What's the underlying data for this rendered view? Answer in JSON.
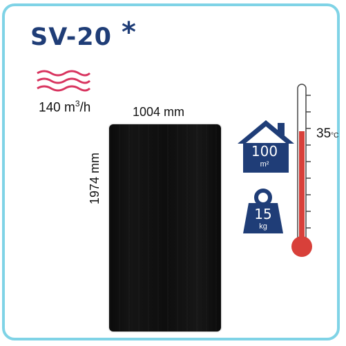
{
  "title": "SV-20",
  "title_mark": "*",
  "flow": {
    "value": "140 m",
    "exp": "3",
    "unit": "/h"
  },
  "dimensions": {
    "width": "1004 mm",
    "height": "1974 mm"
  },
  "area": {
    "value": "100",
    "unit": "m²"
  },
  "weight": {
    "value": "15",
    "unit": "kg"
  },
  "temperature": {
    "value": "35",
    "unit": "°C"
  },
  "colors": {
    "border": "#7fd3e6",
    "brand": "#1f3d77",
    "waves": "#d8345f",
    "thermometer": "#d8403a"
  },
  "icons": [
    "waves-icon",
    "house-icon",
    "weight-icon",
    "thermometer-icon"
  ]
}
